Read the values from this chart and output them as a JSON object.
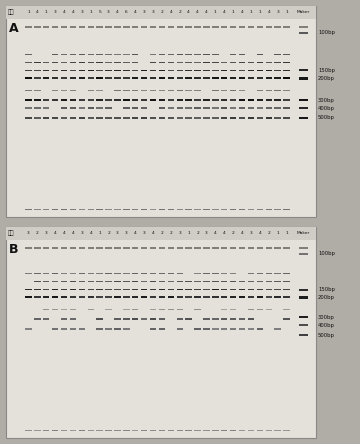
{
  "panel_A_header": "1 4 1 3 4 4 3 1 5 3 4 6 4 3 3 2 4 2 4 4 4 1 4 1 4 1 1 4 3 1",
  "panel_B_header": "3 2 3 4 4 4 3 4 1 2 3 3 4 3 4 2 2 3 1 2 3 4 4 2 4 3 4 2 1 1",
  "label_A": "A",
  "label_B": "B",
  "header_label": "基型",
  "maker_label": "Maker",
  "bg_outer": "#b0aca6",
  "bg_panel": "#e4e0da",
  "bg_header": "#d0ccc6",
  "num_lanes": 30,
  "panel_A_bands": [
    {
      "yf": 0.04,
      "bh": 0.9,
      "dark": 0.5,
      "prob": 1.0,
      "vary": true
    },
    {
      "yf": 0.5,
      "bh": 1.8,
      "dark": 0.7,
      "prob": 0.95,
      "vary": true
    },
    {
      "yf": 0.55,
      "bh": 1.4,
      "dark": 0.6,
      "prob": 0.9,
      "vary": true
    },
    {
      "yf": 0.59,
      "bh": 2.2,
      "dark": 0.85,
      "prob": 1.0,
      "vary": true
    },
    {
      "yf": 0.64,
      "bh": 1.2,
      "dark": 0.5,
      "prob": 0.8,
      "vary": true
    },
    {
      "yf": 0.7,
      "bh": 2.0,
      "dark": 0.85,
      "prob": 1.0,
      "vary": true
    },
    {
      "yf": 0.74,
      "bh": 1.8,
      "dark": 0.8,
      "prob": 1.0,
      "vary": true
    },
    {
      "yf": 0.78,
      "bh": 1.5,
      "dark": 0.7,
      "prob": 0.95,
      "vary": true
    },
    {
      "yf": 0.82,
      "bh": 1.2,
      "dark": 0.6,
      "prob": 0.9,
      "vary": true
    }
  ],
  "panel_A_marker": [
    {
      "yf": 0.5,
      "bh": 2.5,
      "dark": 0.9,
      "label": "500bp"
    },
    {
      "yf": 0.55,
      "bh": 2.2,
      "dark": 0.85,
      "label": "400bp"
    },
    {
      "yf": 0.59,
      "bh": 2.5,
      "dark": 0.92,
      "label": "300bp"
    },
    {
      "yf": 0.7,
      "bh": 2.3,
      "dark": 0.9,
      "label": "200bp"
    },
    {
      "yf": 0.74,
      "bh": 2.0,
      "dark": 0.85,
      "label": "150bp"
    },
    {
      "yf": 0.93,
      "bh": 1.5,
      "dark": 0.65,
      "label": "100bp"
    }
  ],
  "panel_B_bands": [
    {
      "yf": 0.04,
      "bh": 0.9,
      "dark": 0.45,
      "prob": 1.0,
      "vary": true
    },
    {
      "yf": 0.55,
      "bh": 1.5,
      "dark": 0.55,
      "prob": 0.7,
      "vary": true
    },
    {
      "yf": 0.6,
      "bh": 1.8,
      "dark": 0.65,
      "prob": 0.75,
      "vary": true
    },
    {
      "yf": 0.65,
      "bh": 1.0,
      "dark": 0.4,
      "prob": 0.65,
      "vary": true
    },
    {
      "yf": 0.71,
      "bh": 2.0,
      "dark": 0.82,
      "prob": 1.0,
      "vary": true
    },
    {
      "yf": 0.75,
      "bh": 1.8,
      "dark": 0.78,
      "prob": 1.0,
      "vary": true
    },
    {
      "yf": 0.79,
      "bh": 1.4,
      "dark": 0.65,
      "prob": 0.92,
      "vary": true
    },
    {
      "yf": 0.83,
      "bh": 1.1,
      "dark": 0.55,
      "prob": 0.85,
      "vary": true
    }
  ],
  "panel_B_marker": [
    {
      "yf": 0.52,
      "bh": 2.0,
      "dark": 0.75,
      "label": "500bp"
    },
    {
      "yf": 0.57,
      "bh": 1.8,
      "dark": 0.7,
      "label": "400bp"
    },
    {
      "yf": 0.61,
      "bh": 2.3,
      "dark": 0.88,
      "label": "300bp"
    },
    {
      "yf": 0.71,
      "bh": 2.2,
      "dark": 0.88,
      "label": "200bp"
    },
    {
      "yf": 0.75,
      "bh": 2.0,
      "dark": 0.82,
      "label": "150bp"
    },
    {
      "yf": 0.93,
      "bh": 1.3,
      "dark": 0.55,
      "label": "100bp"
    }
  ]
}
